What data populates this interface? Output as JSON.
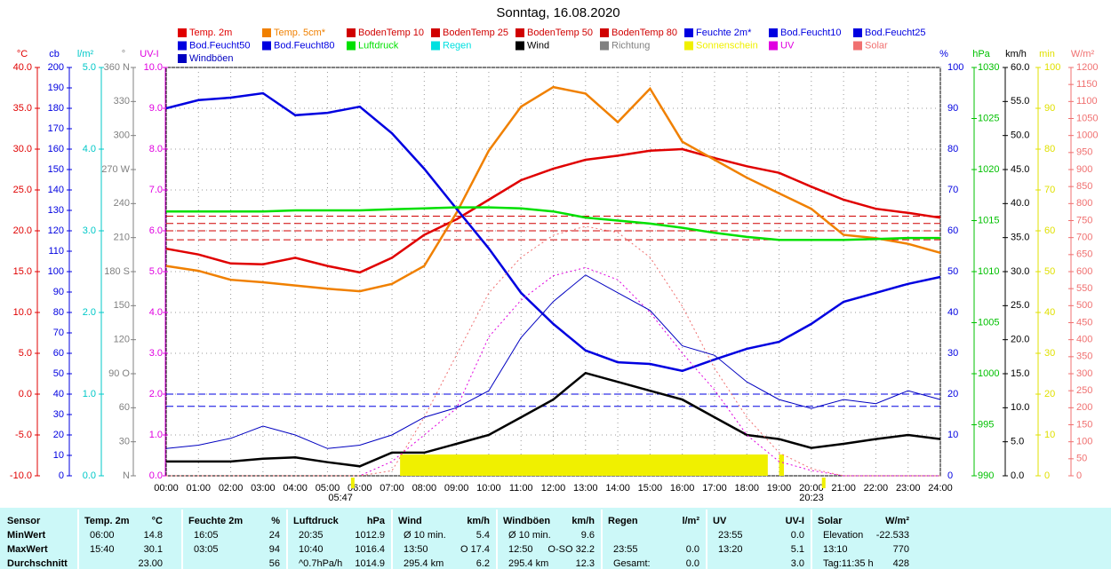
{
  "chart_data": {
    "type": "line",
    "title": "Sonntag, 16.08.2020",
    "x": [
      "00:00",
      "01:00",
      "02:00",
      "03:00",
      "04:00",
      "05:00",
      "06:00",
      "07:00",
      "08:00",
      "09:00",
      "10:00",
      "11:00",
      "12:00",
      "13:00",
      "14:00",
      "15:00",
      "16:00",
      "17:00",
      "18:00",
      "19:00",
      "20:00",
      "21:00",
      "22:00",
      "23:00",
      "24:00"
    ],
    "sunrise": "05:47",
    "sunset": "20:23",
    "grid": true,
    "axes": [
      {
        "unit": "°C",
        "color": "#e00000",
        "lim": [
          -10,
          40
        ],
        "ticks": [
          {
            "value": 40,
            "label": "40.0"
          },
          {
            "value": 35,
            "label": "35.0"
          },
          {
            "value": 30,
            "label": "30.0"
          },
          {
            "value": 25,
            "label": "25.0"
          },
          {
            "value": 20,
            "label": "20.0"
          },
          {
            "value": 15,
            "label": "15.0"
          },
          {
            "value": 10,
            "label": "10.0"
          },
          {
            "value": 5,
            "label": "5.0"
          },
          {
            "value": 0,
            "label": "0.0"
          },
          {
            "value": -5,
            "label": "-5.0"
          },
          {
            "value": -10,
            "label": "-10.0"
          }
        ]
      },
      {
        "unit": "cb",
        "color": "#0000e0",
        "lim": [
          0,
          200
        ],
        "ticks": [
          200,
          190,
          180,
          170,
          160,
          150,
          140,
          130,
          120,
          110,
          100,
          90,
          80,
          70,
          60,
          50,
          40,
          30,
          20,
          10,
          0
        ]
      },
      {
        "unit": "l/m²",
        "color": "#00c8c8",
        "lim": [
          0,
          5
        ],
        "ticks": [
          {
            "value": 5,
            "label": "5.0"
          },
          {
            "value": 4,
            "label": "4.0"
          },
          {
            "value": 3,
            "label": "3.0"
          },
          {
            "value": 2,
            "label": "2.0"
          },
          {
            "value": 1,
            "label": "1.0"
          },
          {
            "value": 0,
            "label": "0.0"
          }
        ]
      },
      {
        "unit": "°",
        "color": "#808080",
        "lim": [
          0,
          360
        ],
        "ticks": [
          {
            "value": 360,
            "label": "360 N"
          },
          330,
          300,
          {
            "value": 270,
            "label": "270 W"
          },
          240,
          210,
          {
            "value": 180,
            "label": "180 S"
          },
          150,
          120,
          {
            "value": 90,
            "label": "90 O"
          },
          60,
          30,
          {
            "value": 0,
            "label": "N"
          }
        ]
      },
      {
        "unit": "UV-I",
        "color": "#e000e0",
        "lim": [
          0,
          10
        ],
        "ticks": [
          {
            "value": 10,
            "label": "10.0"
          },
          {
            "value": 9,
            "label": "9.0"
          },
          {
            "value": 8,
            "label": "8.0"
          },
          {
            "value": 7,
            "label": "7.0"
          },
          {
            "value": 6,
            "label": "6.0"
          },
          {
            "value": 5,
            "label": "5.0"
          },
          {
            "value": 4,
            "label": "4.0"
          },
          {
            "value": 3,
            "label": "3.0"
          },
          {
            "value": 2,
            "label": "2.0"
          },
          {
            "value": 1,
            "label": "1.0"
          },
          {
            "value": 0,
            "label": "0.0"
          }
        ]
      },
      {
        "unit": "%",
        "color": "#0000e0",
        "lim": [
          0,
          100
        ],
        "ticks": [
          100,
          90,
          80,
          70,
          60,
          50,
          40,
          30,
          20,
          10,
          0
        ]
      },
      {
        "unit": "hPa",
        "color": "#00c000",
        "lim": [
          990,
          1030
        ],
        "ticks": [
          1030,
          1025,
          1020,
          1015,
          1010,
          1005,
          1000,
          995,
          990
        ]
      },
      {
        "unit": "km/h",
        "color": "#000000",
        "lim": [
          0,
          60
        ],
        "ticks": [
          {
            "value": 60,
            "label": "60.0"
          },
          {
            "value": 55,
            "label": "55.0"
          },
          {
            "value": 50,
            "label": "50.0"
          },
          {
            "value": 45,
            "label": "45.0"
          },
          {
            "value": 40,
            "label": "40.0"
          },
          {
            "value": 35,
            "label": "35.0"
          },
          {
            "value": 30,
            "label": "30.0"
          },
          {
            "value": 25,
            "label": "25.0"
          },
          {
            "value": 20,
            "label": "20.0"
          },
          {
            "value": 15,
            "label": "15.0"
          },
          {
            "value": 10,
            "label": "10.0"
          },
          {
            "value": 5,
            "label": "5.0"
          },
          {
            "value": 0,
            "label": "0.0"
          }
        ]
      },
      {
        "unit": "min",
        "color": "#e0e000",
        "lim": [
          0,
          100
        ],
        "ticks": [
          100,
          90,
          80,
          70,
          60,
          50,
          40,
          30,
          20,
          10,
          0
        ]
      },
      {
        "unit": "W/m²",
        "color": "#f07070",
        "lim": [
          0,
          1200
        ],
        "ticks": [
          1200,
          1150,
          1100,
          1050,
          1000,
          950,
          900,
          850,
          800,
          750,
          700,
          650,
          600,
          550,
          500,
          450,
          400,
          350,
          300,
          250,
          200,
          150,
          100,
          50,
          0
        ]
      }
    ],
    "series": [
      {
        "name": "Temp. 2m",
        "color": "#e00000",
        "axis": "°C",
        "values": [
          17.8,
          17.1,
          16.0,
          15.9,
          16.7,
          15.7,
          14.9,
          16.7,
          19.5,
          21.4,
          23.8,
          26.2,
          27.6,
          28.7,
          29.2,
          29.8,
          30.0,
          28.9,
          27.9,
          27.1,
          25.4,
          23.8,
          22.7,
          22.2,
          21.6
        ]
      },
      {
        "name": "Temp. 5cm*",
        "color": "#f08000",
        "axis": "°C",
        "values": [
          15.7,
          15.1,
          14.0,
          13.7,
          13.3,
          12.9,
          12.6,
          13.5,
          15.7,
          22.2,
          29.8,
          35.2,
          37.6,
          36.8,
          33.3,
          37.4,
          30.9,
          28.7,
          26.5,
          24.6,
          22.7,
          19.5,
          19.1,
          18.4,
          17.3
        ]
      },
      {
        "name": "BodenTemp 10",
        "color": "#d00000",
        "axis": "°C",
        "level": 21.8
      },
      {
        "name": "BodenTemp 25",
        "color": "#d00000",
        "axis": "°C",
        "level": 20.9
      },
      {
        "name": "BodenTemp 50",
        "color": "#d00000",
        "axis": "°C",
        "level": 20.0
      },
      {
        "name": "BodenTemp 80",
        "color": "#d00000",
        "axis": "°C",
        "level": 18.9
      },
      {
        "name": "Feuchte 2m*",
        "color": "#0000e0",
        "axis": "%",
        "values": [
          90.0,
          92.0,
          92.6,
          93.7,
          88.3,
          88.9,
          90.4,
          83.9,
          75.2,
          65.4,
          55.7,
          44.8,
          37.2,
          30.7,
          27.8,
          27.4,
          25.7,
          28.5,
          31.1,
          32.8,
          37.2,
          42.6,
          44.8,
          47.0,
          48.7
        ]
      },
      {
        "name": "Bod.Feucht10",
        "color": "#0000e0",
        "axis": "%",
        "level": 20
      },
      {
        "name": "Bod.Feucht25",
        "color": "#0000e0",
        "axis": "%",
        "level": 17
      },
      {
        "name": "Bod.Feucht50",
        "color": "#0000e0"
      },
      {
        "name": "Bod.Feucht80",
        "color": "#0000e0"
      },
      {
        "name": "Luftdruck",
        "color": "#00e000",
        "axis": "hPa",
        "values": [
          1015.9,
          1015.9,
          1015.9,
          1015.9,
          1016.0,
          1016.0,
          1016.0,
          1016.1,
          1016.2,
          1016.3,
          1016.3,
          1016.2,
          1015.9,
          1015.3,
          1015.0,
          1014.7,
          1014.3,
          1013.8,
          1013.4,
          1013.1,
          1013.1,
          1013.1,
          1013.2,
          1013.3,
          1013.3
        ]
      },
      {
        "name": "Regen",
        "color": "#00e0e0"
      },
      {
        "name": "Wind",
        "color": "#000000",
        "axis": "km/h",
        "values": [
          2.1,
          2.1,
          2.1,
          2.5,
          2.7,
          2.0,
          1.4,
          3.4,
          3.4,
          4.7,
          6.0,
          8.6,
          11.2,
          15.1,
          13.8,
          12.5,
          11.2,
          8.6,
          6.0,
          5.4,
          4.1,
          4.7,
          5.4,
          6.0,
          5.4
        ]
      },
      {
        "name": "Richtung",
        "color": "#808080"
      },
      {
        "name": "Sonnenschein",
        "color": "#f0f000",
        "spans": [
          [
            7.25,
            18.65
          ],
          [
            19.0,
            19.15
          ]
        ]
      },
      {
        "name": "UV",
        "color": "#e000e0",
        "axis": "UV-I",
        "dotted": true,
        "values": [
          0,
          0,
          0,
          0,
          0,
          0,
          0,
          0.35,
          1.0,
          1.65,
          3.4,
          4.3,
          4.9,
          5.1,
          4.8,
          4.0,
          3.0,
          2.1,
          1.0,
          0.35,
          0.13,
          0,
          0,
          0,
          0
        ]
      },
      {
        "name": "Solar",
        "color": "#f07070",
        "axis": "W/m²",
        "dotted": true,
        "values": [
          0,
          0,
          0,
          0,
          0,
          0,
          0,
          15,
          172,
          355,
          537,
          642,
          707,
          733,
          715,
          642,
          498,
          316,
          172,
          68,
          21,
          0,
          0,
          0,
          0
        ]
      },
      {
        "name": "Windböen",
        "color": "#0000c0",
        "axis": "km/h",
        "values": [
          4.0,
          4.5,
          5.5,
          7.3,
          6.0,
          4.0,
          4.5,
          6.0,
          8.6,
          10.0,
          12.5,
          20.3,
          25.6,
          29.5,
          26.9,
          24.3,
          19.1,
          17.7,
          13.8,
          11.2,
          9.9,
          11.2,
          10.6,
          12.5,
          11.2
        ]
      }
    ]
  },
  "table": {
    "row_labels": {
      "header": "Sensor",
      "rows": [
        "MinWert",
        "MaxWert",
        "Durchschnitt"
      ]
    },
    "sections": [
      {
        "header": [
          "Temp. 2m",
          "°C"
        ],
        "rows": [
          [
            "06:00",
            "14.8"
          ],
          [
            "15:40",
            "30.1"
          ],
          [
            null,
            "23.00"
          ]
        ]
      },
      {
        "header": [
          "Feuchte 2m",
          "%"
        ],
        "rows": [
          [
            "16:05",
            "24"
          ],
          [
            "03:05",
            "94"
          ],
          [
            null,
            "56"
          ]
        ]
      },
      {
        "header": [
          "Luftdruck",
          "hPa"
        ],
        "rows": [
          [
            "20:35",
            "1012.9"
          ],
          [
            "10:40",
            "1016.4"
          ],
          [
            "^0.7hPa/h",
            "1014.9"
          ]
        ]
      },
      {
        "header": [
          "Wind",
          "km/h"
        ],
        "rows": [
          [
            "Ø 10 min.",
            "5.4"
          ],
          [
            "13:50",
            "O 17.4"
          ],
          [
            "295.4 km",
            "6.2"
          ]
        ]
      },
      {
        "header": [
          "Windböen",
          "km/h"
        ],
        "rows": [
          [
            "Ø 10 min.",
            "9.6"
          ],
          [
            "12:50",
            "O-SO 32.2"
          ],
          [
            "295.4 km",
            "12.3"
          ]
        ]
      },
      {
        "header": [
          "Regen",
          "l/m²"
        ],
        "rows": [
          [
            null,
            null
          ],
          [
            "23:55",
            "0.0"
          ],
          [
            "Gesamt:",
            "0.0"
          ]
        ]
      },
      {
        "header": [
          "UV",
          "UV-I"
        ],
        "rows": [
          [
            "23:55",
            "0.0"
          ],
          [
            "13:20",
            "5.1"
          ],
          [
            null,
            "3.0"
          ]
        ]
      },
      {
        "header": [
          "Solar",
          "W/m²"
        ],
        "rows": [
          [
            "Elevation",
            "-22.533"
          ],
          [
            "13:10",
            "770"
          ],
          [
            "Tag:11:35 h",
            "428"
          ]
        ]
      }
    ]
  }
}
